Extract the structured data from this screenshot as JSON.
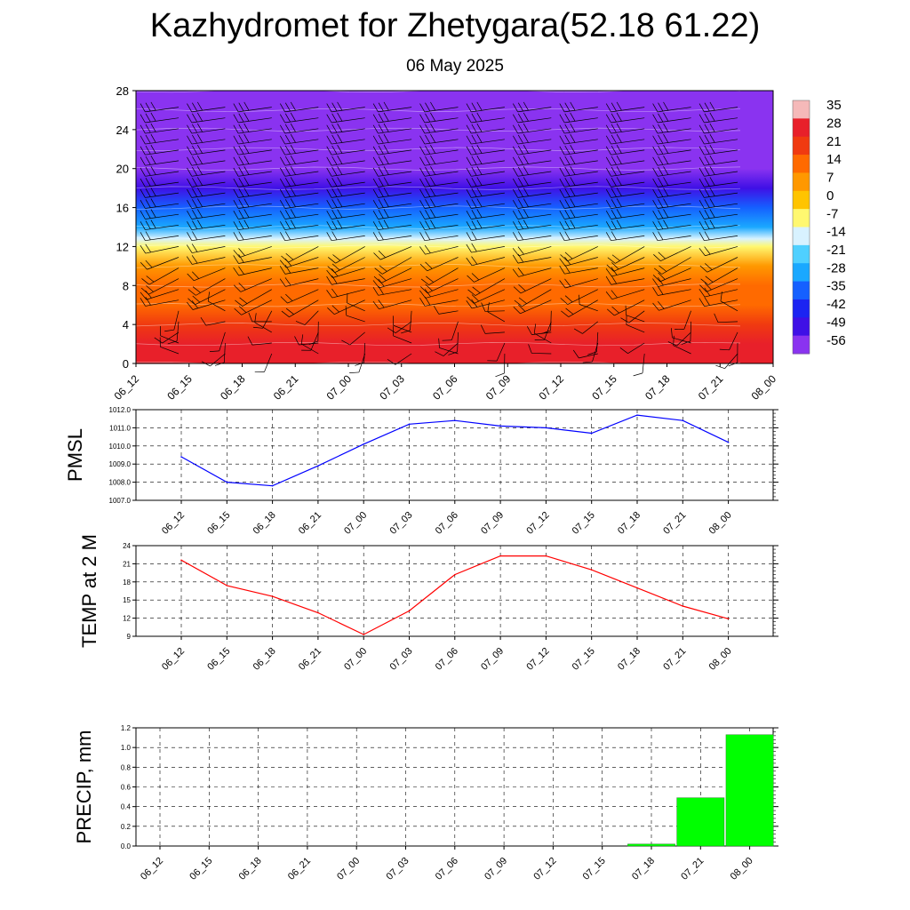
{
  "title": "Kazhydromet for Zhetygara(52.18 61.22)",
  "subtitle": "06 May 2025",
  "chart_data": [
    {
      "type": "heatmap",
      "name": "vertical temperature and wind cross-section",
      "x_categories": [
        "06_12",
        "06_15",
        "06_18",
        "06_21",
        "07_00",
        "07_03",
        "07_06",
        "07_09",
        "07_12",
        "07_15",
        "07_18",
        "07_21",
        "08_00"
      ],
      "yticks": [
        0,
        4,
        8,
        12,
        16,
        20,
        24,
        28
      ],
      "ylim": [
        0,
        28
      ],
      "colorbar_ticks": [
        35,
        28,
        21,
        14,
        7,
        0,
        -7,
        -14,
        -21,
        -28,
        -35,
        -42,
        -49,
        -56
      ],
      "colorbar_colors": [
        "#f5b9b9",
        "#e8202a",
        "#f03a10",
        "#ff6a00",
        "#ff9800",
        "#ffc400",
        "#fff870",
        "#d8f2ff",
        "#4fd0ff",
        "#1aa8ff",
        "#1560ff",
        "#1c24f2",
        "#3f10e6",
        "#8a33f0"
      ],
      "temperature_profile": [
        {
          "level": 0,
          "value": 34
        },
        {
          "level": 2,
          "value": 30
        },
        {
          "level": 4,
          "value": 24
        },
        {
          "level": 6,
          "value": 20
        },
        {
          "level": 8,
          "value": 16
        },
        {
          "level": 10,
          "value": 9
        },
        {
          "level": 12,
          "value": 0
        },
        {
          "level": 12.8,
          "value": -10
        },
        {
          "level": 14,
          "value": -22
        },
        {
          "level": 16,
          "value": -32
        },
        {
          "level": 18,
          "value": -42
        },
        {
          "level": 20,
          "value": -52
        },
        {
          "level": 22,
          "value": -56
        },
        {
          "level": 24,
          "value": -54
        },
        {
          "level": 26,
          "value": -58
        },
        {
          "level": 28,
          "value": -60
        }
      ]
    },
    {
      "type": "line",
      "ylabel": "PMSL",
      "categories": [
        "06_12",
        "06_15",
        "06_18",
        "06_21",
        "07_00",
        "07_03",
        "07_06",
        "07_09",
        "07_12",
        "07_15",
        "07_18",
        "07_21",
        "08_00"
      ],
      "values": [
        1009.4,
        1008.0,
        1007.8,
        1008.9,
        1010.1,
        1011.2,
        1011.4,
        1011.1,
        1011.0,
        1010.7,
        1011.7,
        1011.4,
        1010.2
      ],
      "ylim": [
        1007.0,
        1012.0
      ],
      "yticks": [
        "1007.0",
        "1008.0",
        "1009.0",
        "1010.0",
        "1011.0",
        "1012.0"
      ],
      "color": "#0000ff"
    },
    {
      "type": "line",
      "ylabel": "TEMP at 2 M",
      "categories": [
        "06_12",
        "06_15",
        "06_18",
        "06_21",
        "07_00",
        "07_03",
        "07_06",
        "07_09",
        "07_12",
        "07_15",
        "07_18",
        "07_21",
        "08_00"
      ],
      "values": [
        21.6,
        17.4,
        15.6,
        12.9,
        9.3,
        13.2,
        19.2,
        22.3,
        22.3,
        20.0,
        17.0,
        14.0,
        11.9
      ],
      "ylim": [
        9,
        24
      ],
      "yticks": [
        "9",
        "12",
        "15",
        "18",
        "21",
        "24"
      ],
      "color": "#ff0000"
    },
    {
      "type": "bar",
      "ylabel": "PRECIP, mm",
      "categories": [
        "06_12",
        "06_15",
        "06_18",
        "06_21",
        "07_00",
        "07_03",
        "07_06",
        "07_09",
        "07_12",
        "07_15",
        "07_18",
        "07_21",
        "08_00"
      ],
      "values": [
        0,
        0,
        0,
        0,
        0,
        0,
        0,
        0,
        0,
        0,
        0.02,
        0.49,
        1.13
      ],
      "ylim": [
        0,
        1.2
      ],
      "yticks": [
        "0.0",
        "0.2",
        "0.4",
        "0.6",
        "0.8",
        "1.0",
        "1.2"
      ],
      "color": "#00ff00"
    }
  ]
}
